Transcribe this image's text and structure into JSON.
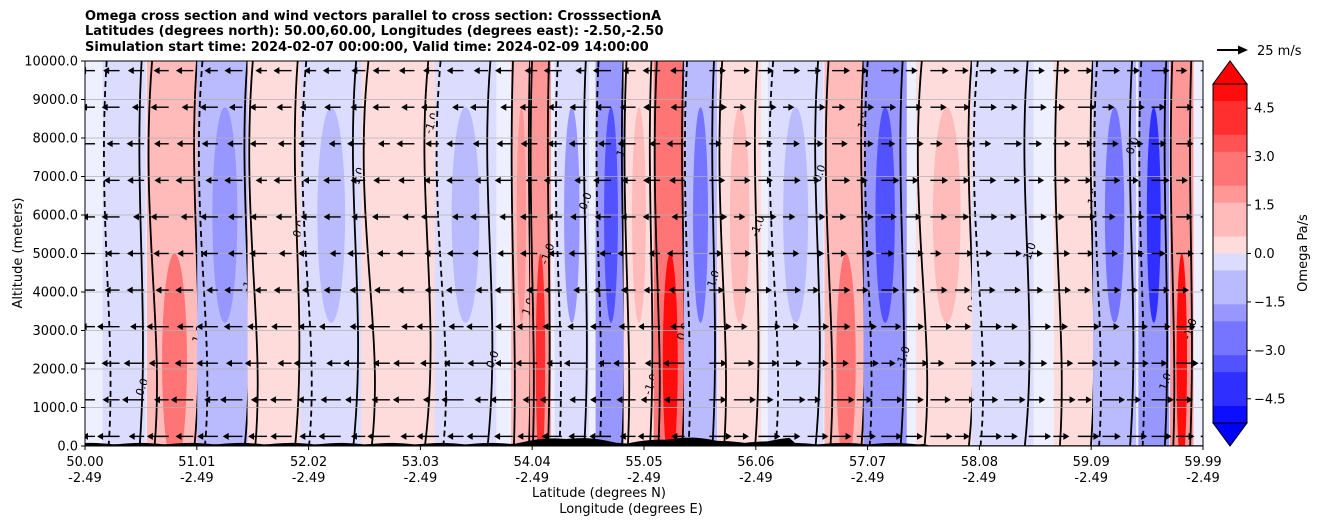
{
  "chart_data": {
    "type": "heatmap",
    "title_lines": [
      "Omega cross section and wind vectors parallel to cross section: CrosssectionA",
      "Latitudes (degrees north): 50.00,60.00, Longitudes (degrees east): -2.50,-2.50",
      "Simulation start time: 2024-02-07 00:00:00, Valid time: 2024-02-09 14:00:00"
    ],
    "ylabel": "Altitude (meters)",
    "xlabel": [
      "Latitude (degrees N)",
      "Longitude (degrees E)"
    ],
    "ylim": [
      0,
      10000
    ],
    "yticks": [
      "0.0",
      "1000.0",
      "2000.0",
      "3000.0",
      "4000.0",
      "5000.0",
      "6000.0",
      "7000.0",
      "8000.0",
      "9000.0",
      "10000.0"
    ],
    "xlim": [
      50.0,
      59.99
    ],
    "xticks": [
      {
        "lat": "50.00",
        "lon": "-2.49"
      },
      {
        "lat": "51.01",
        "lon": "-2.49"
      },
      {
        "lat": "52.02",
        "lon": "-2.49"
      },
      {
        "lat": "53.03",
        "lon": "-2.49"
      },
      {
        "lat": "54.04",
        "lon": "-2.49"
      },
      {
        "lat": "55.05",
        "lon": "-2.49"
      },
      {
        "lat": "56.06",
        "lon": "-2.49"
      },
      {
        "lat": "57.07",
        "lon": "-2.49"
      },
      {
        "lat": "58.08",
        "lon": "-2.49"
      },
      {
        "lat": "59.09",
        "lon": "-2.49"
      },
      {
        "lat": "59.99",
        "lon": "-2.49"
      }
    ],
    "grid": "horizontal",
    "colorbar": {
      "label": "Omega Pa/s",
      "range": [
        -5.25,
        5.25
      ],
      "ticks": [
        "−4.5",
        "−3.0",
        "−1.5",
        "0.0",
        "1.5",
        "3.0",
        "4.5"
      ],
      "tick_values": [
        -4.5,
        -3.0,
        -1.5,
        0.0,
        1.5,
        3.0,
        4.5
      ],
      "extend": "both",
      "negative_color": "#0000ff",
      "positive_color": "#ff0000"
    },
    "quiver_key": "25 m/s",
    "omega_bands": [
      {
        "lat": 50.35,
        "value": -0.6
      },
      {
        "lat": 50.8,
        "value": 2.8
      },
      {
        "lat": 51.25,
        "value": -2.2
      },
      {
        "lat": 51.7,
        "value": 0.7
      },
      {
        "lat": 52.2,
        "value": -0.8
      },
      {
        "lat": 52.8,
        "value": 0.5
      },
      {
        "lat": 53.4,
        "value": -1.2
      },
      {
        "lat": 53.9,
        "value": 2.0
      },
      {
        "lat": 54.07,
        "value": 4.5
      },
      {
        "lat": 54.35,
        "value": -1.6
      },
      {
        "lat": 54.7,
        "value": -3.4
      },
      {
        "lat": 54.95,
        "value": 1.4
      },
      {
        "lat": 55.23,
        "value": 5.2
      },
      {
        "lat": 55.5,
        "value": -3.0
      },
      {
        "lat": 55.85,
        "value": 0.8
      },
      {
        "lat": 56.35,
        "value": -1.0
      },
      {
        "lat": 56.8,
        "value": 2.8
      },
      {
        "lat": 57.15,
        "value": -3.5
      },
      {
        "lat": 57.7,
        "value": 1.2
      },
      {
        "lat": 58.2,
        "value": -0.7
      },
      {
        "lat": 58.85,
        "value": 0.6
      },
      {
        "lat": 59.2,
        "value": -2.4
      },
      {
        "lat": 59.55,
        "value": -3.8
      },
      {
        "lat": 59.8,
        "value": 4.6
      }
    ],
    "contour_labels": [
      "0.0",
      "1.0",
      "-1.0"
    ]
  }
}
